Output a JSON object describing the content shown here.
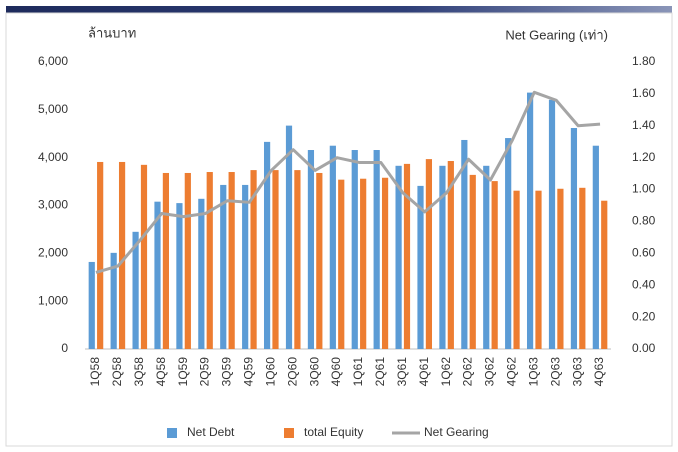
{
  "chart_data": {
    "type": "bar",
    "y_label": "ล้านบาท",
    "y2_label": "Net Gearing (เท่า)",
    "categories": [
      "1Q58",
      "2Q58",
      "3Q58",
      "4Q58",
      "1Q59",
      "2Q59",
      "3Q59",
      "4Q59",
      "1Q60",
      "2Q60",
      "3Q60",
      "4Q60",
      "1Q61",
      "2Q61",
      "3Q61",
      "4Q61",
      "1Q62",
      "2Q62",
      "3Q62",
      "4Q62",
      "1Q63",
      "2Q63",
      "3Q63",
      "4Q63"
    ],
    "series": [
      {
        "name": "Net Debt",
        "color": "#5b9bd5",
        "type": "bar",
        "values": [
          1820,
          2010,
          2450,
          3080,
          3050,
          3140,
          3430,
          3430,
          4330,
          4670,
          4160,
          4250,
          4160,
          4160,
          3830,
          3410,
          3830,
          4370,
          3830,
          4410,
          5360,
          5210,
          4620,
          4250
        ]
      },
      {
        "name": "total Equity",
        "color": "#ed7d31",
        "type": "bar",
        "values": [
          3910,
          3910,
          3850,
          3680,
          3680,
          3700,
          3700,
          3740,
          3740,
          3740,
          3680,
          3540,
          3560,
          3580,
          3870,
          3970,
          3930,
          3640,
          3510,
          3310,
          3310,
          3350,
          3370,
          3100
        ]
      },
      {
        "name": "Net Gearing",
        "color": "#a5a5a5",
        "type": "line",
        "axis": "y2",
        "values": [
          0.48,
          0.52,
          0.68,
          0.85,
          0.83,
          0.85,
          0.93,
          0.92,
          1.12,
          1.25,
          1.12,
          1.2,
          1.17,
          1.17,
          0.98,
          0.86,
          0.98,
          1.19,
          1.06,
          1.31,
          1.61,
          1.56,
          1.4,
          1.41
        ]
      }
    ],
    "ylim": [
      0,
      6000
    ],
    "yticks": [
      0,
      {
        "value": 1000,
        "label": "1,000"
      },
      {
        "value": 2000,
        "label": "2,000"
      },
      {
        "value": 3000,
        "label": "3,000"
      },
      {
        "value": 4000,
        "label": "4,000"
      },
      {
        "value": 5000,
        "label": "5,000"
      },
      {
        "value": 6000,
        "label": "6,000"
      }
    ],
    "y2lim": [
      0,
      1.8
    ],
    "y2ticks": [
      {
        "value": 0,
        "label": "0.00"
      },
      {
        "value": 0.2,
        "label": "0.20"
      },
      {
        "value": 0.4,
        "label": "0.40"
      },
      {
        "value": 0.6,
        "label": "0.60"
      },
      {
        "value": 0.8,
        "label": "0.80"
      },
      {
        "value": 1.0,
        "label": "1.00"
      },
      {
        "value": 1.2,
        "label": "1.20"
      },
      {
        "value": 1.4,
        "label": "1.40"
      },
      {
        "value": 1.6,
        "label": "1.60"
      },
      {
        "value": 1.8,
        "label": "1.80"
      }
    ],
    "grid": false,
    "legend": "bottom"
  }
}
